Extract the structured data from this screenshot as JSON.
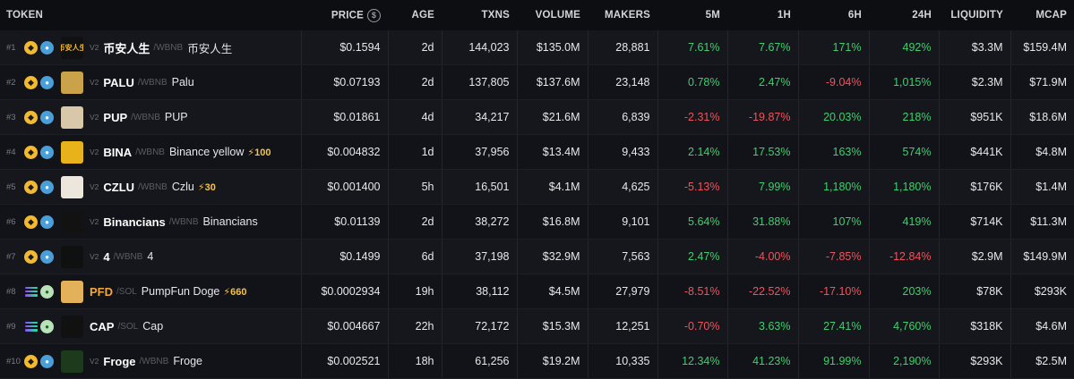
{
  "headers": {
    "token": "TOKEN",
    "price": "PRICE",
    "price_icon": "$",
    "age": "AGE",
    "txns": "TXNS",
    "volume": "VOLUME",
    "makers": "MAKERS",
    "m5": "5M",
    "h1": "1H",
    "h6": "6H",
    "h24": "24H",
    "liquidity": "LIQUIDITY",
    "mcap": "MCAP"
  },
  "colors": {
    "up": "#3fcf6e",
    "down": "#f0535c",
    "boost": "#f6c342"
  },
  "rows": [
    {
      "rank": "#1",
      "chain": "bnb",
      "dex": "bnb-dex-icon",
      "avatar": "币安人生",
      "avatar_bg": "#111111",
      "avatar_fg": "#f3ba2f",
      "ver": "V2",
      "symbol": "币安人生",
      "symbol_color": "white",
      "quote": "/WBNB",
      "name": "币安人生",
      "boost": "",
      "price": "$0.1594",
      "age": "2d",
      "txns": "144,023",
      "volume": "$135.0M",
      "makers": "28,881",
      "m5": "7.61%",
      "m5_dir": "up",
      "h1": "7.67%",
      "h1_dir": "up",
      "h6": "171%",
      "h6_dir": "up",
      "h24": "492%",
      "h24_dir": "up",
      "liquidity": "$3.3M",
      "mcap": "$159.4M"
    },
    {
      "rank": "#2",
      "chain": "bnb",
      "dex": "bnb-dex-icon",
      "avatar": "",
      "avatar_bg": "#c9a24a",
      "avatar_fg": "#222",
      "ver": "V2",
      "symbol": "PALU",
      "symbol_color": "white",
      "quote": "/WBNB",
      "name": "Palu",
      "boost": "",
      "price": "$0.07193",
      "age": "2d",
      "txns": "137,805",
      "volume": "$137.6M",
      "makers": "23,148",
      "m5": "0.78%",
      "m5_dir": "up",
      "h1": "2.47%",
      "h1_dir": "up",
      "h6": "-9.04%",
      "h6_dir": "down",
      "h24": "1,015%",
      "h24_dir": "up",
      "liquidity": "$2.3M",
      "mcap": "$71.9M"
    },
    {
      "rank": "#3",
      "chain": "bnb",
      "dex": "bnb-dex-icon",
      "avatar": "",
      "avatar_bg": "#d8c7a8",
      "avatar_fg": "#222",
      "ver": "V2",
      "symbol": "PUP",
      "symbol_color": "white",
      "quote": "/WBNB",
      "name": "PUP",
      "boost": "",
      "price": "$0.01861",
      "age": "4d",
      "txns": "34,217",
      "volume": "$21.6M",
      "makers": "6,839",
      "m5": "-2.31%",
      "m5_dir": "down",
      "h1": "-19.87%",
      "h1_dir": "down",
      "h6": "20.03%",
      "h6_dir": "up",
      "h24": "218%",
      "h24_dir": "up",
      "liquidity": "$951K",
      "mcap": "$18.6M"
    },
    {
      "rank": "#4",
      "chain": "bnb",
      "dex": "bnb-dex-icon",
      "avatar": "",
      "avatar_bg": "#e8b21a",
      "avatar_fg": "#222",
      "ver": "V2",
      "symbol": "BINA",
      "symbol_color": "white",
      "quote": "/WBNB",
      "name": "Binance yellow",
      "boost": "⚡100",
      "price": "$0.004832",
      "age": "1d",
      "txns": "37,956",
      "volume": "$13.4M",
      "makers": "9,433",
      "m5": "2.14%",
      "m5_dir": "up",
      "h1": "17.53%",
      "h1_dir": "up",
      "h6": "163%",
      "h6_dir": "up",
      "h24": "574%",
      "h24_dir": "up",
      "liquidity": "$441K",
      "mcap": "$4.8M"
    },
    {
      "rank": "#5",
      "chain": "bnb",
      "dex": "bnb-dex-icon",
      "avatar": "",
      "avatar_bg": "#ece6dc",
      "avatar_fg": "#222",
      "ver": "V2",
      "symbol": "CZLU",
      "symbol_color": "white",
      "quote": "/WBNB",
      "name": "Czlu",
      "boost": "⚡30",
      "price": "$0.001400",
      "age": "5h",
      "txns": "16,501",
      "volume": "$4.1M",
      "makers": "4,625",
      "m5": "-5.13%",
      "m5_dir": "down",
      "h1": "7.99%",
      "h1_dir": "up",
      "h6": "1,180%",
      "h6_dir": "up",
      "h24": "1,180%",
      "h24_dir": "up",
      "liquidity": "$176K",
      "mcap": "$1.4M"
    },
    {
      "rank": "#6",
      "chain": "bnb",
      "dex": "bnb-dex-icon",
      "avatar": "",
      "avatar_bg": "#121212",
      "avatar_fg": "#f3ba2f",
      "ver": "V2",
      "symbol": "Binancians",
      "symbol_color": "white",
      "quote": "/WBNB",
      "name": "Binancians",
      "boost": "",
      "price": "$0.01139",
      "age": "2d",
      "txns": "38,272",
      "volume": "$16.8M",
      "makers": "9,101",
      "m5": "5.64%",
      "m5_dir": "up",
      "h1": "31.88%",
      "h1_dir": "up",
      "h6": "107%",
      "h6_dir": "up",
      "h24": "419%",
      "h24_dir": "up",
      "liquidity": "$714K",
      "mcap": "$11.3M"
    },
    {
      "rank": "#7",
      "chain": "bnb",
      "dex": "bnb-dex-icon",
      "avatar": "",
      "avatar_bg": "#101010",
      "avatar_fg": "#f3ba2f",
      "ver": "V2",
      "symbol": "4",
      "symbol_color": "white",
      "quote": "/WBNB",
      "name": "4",
      "boost": "",
      "price": "$0.1499",
      "age": "6d",
      "txns": "37,198",
      "volume": "$32.9M",
      "makers": "7,563",
      "m5": "2.47%",
      "m5_dir": "up",
      "h1": "-4.00%",
      "h1_dir": "down",
      "h6": "-7.85%",
      "h6_dir": "down",
      "h24": "-12.84%",
      "h24_dir": "down",
      "liquidity": "$2.9M",
      "mcap": "$149.9M"
    },
    {
      "rank": "#8",
      "chain": "sol",
      "dex": "pump-dex-icon",
      "avatar": "",
      "avatar_bg": "#e3b15a",
      "avatar_fg": "#222",
      "ver": "",
      "symbol": "PFD",
      "symbol_color": "orange",
      "quote": "/SOL",
      "name": "PumpFun Doge",
      "boost": "⚡660",
      "price": "$0.0002934",
      "age": "19h",
      "txns": "38,112",
      "volume": "$4.5M",
      "makers": "27,979",
      "m5": "-8.51%",
      "m5_dir": "down",
      "h1": "-22.52%",
      "h1_dir": "down",
      "h6": "-17.10%",
      "h6_dir": "down",
      "h24": "203%",
      "h24_dir": "up",
      "liquidity": "$78K",
      "mcap": "$293K"
    },
    {
      "rank": "#9",
      "chain": "sol",
      "dex": "pump-dex-icon",
      "avatar": "",
      "avatar_bg": "#111111",
      "avatar_fg": "#4cc04c",
      "ver": "",
      "symbol": "CAP",
      "symbol_color": "white",
      "quote": "/SOL",
      "name": "Cap",
      "boost": "",
      "price": "$0.004667",
      "age": "22h",
      "txns": "72,172",
      "volume": "$15.3M",
      "makers": "12,251",
      "m5": "-0.70%",
      "m5_dir": "down",
      "h1": "3.63%",
      "h1_dir": "up",
      "h6": "27.41%",
      "h6_dir": "up",
      "h24": "4,760%",
      "h24_dir": "up",
      "liquidity": "$318K",
      "mcap": "$4.6M"
    },
    {
      "rank": "#10",
      "chain": "bnb",
      "dex": "bnb-dex-icon",
      "avatar": "",
      "avatar_bg": "#1d3a1d",
      "avatar_fg": "#6ee06e",
      "ver": "V2",
      "symbol": "Froge",
      "symbol_color": "white",
      "quote": "/WBNB",
      "name": "Froge",
      "boost": "",
      "price": "$0.002521",
      "age": "18h",
      "txns": "61,256",
      "volume": "$19.2M",
      "makers": "10,335",
      "m5": "12.34%",
      "m5_dir": "up",
      "h1": "41.23%",
      "h1_dir": "up",
      "h6": "91.99%",
      "h6_dir": "up",
      "h24": "2,190%",
      "h24_dir": "up",
      "liquidity": "$293K",
      "mcap": "$2.5M"
    }
  ]
}
